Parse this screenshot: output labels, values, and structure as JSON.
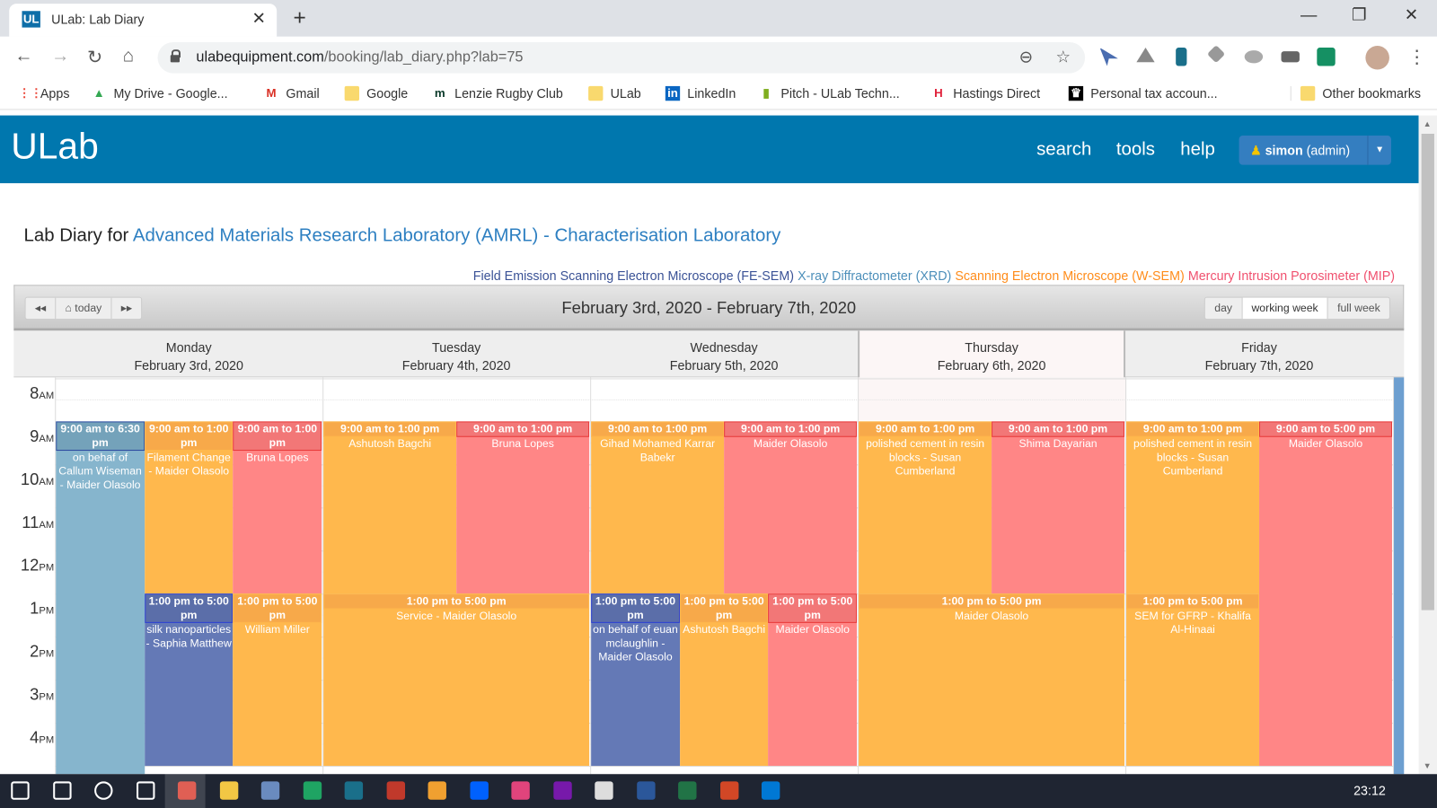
{
  "browser": {
    "tab_title": "ULab: Lab Diary",
    "tab_favicon": "UL",
    "url_host": "ulabequipment.com",
    "url_path": "/booking/lab_diary.php?lab=75",
    "bookmarks": [
      {
        "label": "Apps",
        "icon": "apps-grid-icon"
      },
      {
        "label": "My Drive - Google...",
        "icon": "google-drive-icon"
      },
      {
        "label": "Gmail",
        "icon": "gmail-icon"
      },
      {
        "label": "Google",
        "icon": "folder-icon"
      },
      {
        "label": "Lenzie Rugby Club",
        "icon": "lenzie-icon"
      },
      {
        "label": "ULab",
        "icon": "folder-icon"
      },
      {
        "label": "LinkedIn",
        "icon": "linkedin-icon"
      },
      {
        "label": "Pitch - ULab Techn...",
        "icon": "pitch-icon"
      },
      {
        "label": "Hastings Direct",
        "icon": "hastings-icon"
      },
      {
        "label": "Personal tax accoun...",
        "icon": "crown-icon"
      }
    ],
    "other_bookmarks": "Other bookmarks"
  },
  "header": {
    "logo": "ULab",
    "nav": [
      "search",
      "tools",
      "help"
    ],
    "user_name": "simon",
    "user_role": "(admin)"
  },
  "page": {
    "title_prefix": "Lab Diary for",
    "lab_name": "Advanced Materials Research Laboratory (AMRL) - Characterisation Laboratory"
  },
  "legend": [
    {
      "label": "Field Emission Scanning Electron Microscope (FE-SEM)",
      "color": "#3a5296"
    },
    {
      "label": "X-ray Diffractometer (XRD)",
      "color": "#4d8fba"
    },
    {
      "label": "Scanning Electron Microscope (W-SEM)",
      "color": "#ff8c1a"
    },
    {
      "label": "Mercury Intrusion Porosimeter (MIP)",
      "color": "#f0506e"
    }
  ],
  "calendar": {
    "prev": "◂◂",
    "today": "today",
    "next": "▸▸",
    "range": "February 3rd, 2020 - February 7th, 2020",
    "views": [
      "day",
      "working week",
      "full week"
    ],
    "active_view": "working week",
    "days": [
      {
        "name": "Monday",
        "date": "February 3rd, 2020"
      },
      {
        "name": "Tuesday",
        "date": "February 4th, 2020"
      },
      {
        "name": "Wednesday",
        "date": "February 5th, 2020"
      },
      {
        "name": "Thursday",
        "date": "February 6th, 2020",
        "today": true
      },
      {
        "name": "Friday",
        "date": "February 7th, 2020"
      }
    ],
    "hours": [
      {
        "n": "8",
        "s": "AM"
      },
      {
        "n": "9",
        "s": "AM"
      },
      {
        "n": "10",
        "s": "AM"
      },
      {
        "n": "11",
        "s": "AM"
      },
      {
        "n": "12",
        "s": "PM"
      },
      {
        "n": "1",
        "s": "PM"
      },
      {
        "n": "2",
        "s": "PM"
      },
      {
        "n": "3",
        "s": "PM"
      },
      {
        "n": "4",
        "s": "PM"
      }
    ],
    "instrument_colors": {
      "FE-SEM": {
        "bg": "#6479b6",
        "head": "#5b6ea9",
        "border": "#2b3fd6"
      },
      "XRD": {
        "bg": "#86b5cd",
        "head": "#74a2ba",
        "border": "#2c4aa0"
      },
      "W-SEM": {
        "bg": "#ffb84d",
        "head": "#f7a94a",
        "border": "#ffb84d"
      },
      "MIP": {
        "bg": "#ff8686",
        "head": "#f27777",
        "border": "#e83a3a"
      }
    },
    "events": [
      {
        "day": 0,
        "start": 9,
        "end": 18.5,
        "instrument": "XRD",
        "time": "9:00 am to 6:30 pm",
        "text": "on behaf of Callum Wiseman - Maider Olasolo"
      },
      {
        "day": 0,
        "start": 9,
        "end": 13,
        "instrument": "W-SEM",
        "time": "9:00 am to 1:00 pm",
        "text": "Filament Change - Maider Olasolo"
      },
      {
        "day": 0,
        "start": 9,
        "end": 13,
        "instrument": "MIP",
        "time": "9:00 am to 1:00 pm",
        "text": "Bruna Lopes"
      },
      {
        "day": 0,
        "start": 13,
        "end": 17,
        "instrument": "FE-SEM",
        "time": "1:00 pm to 5:00 pm",
        "text": "silk nanoparticles - Saphia Matthew"
      },
      {
        "day": 0,
        "start": 13,
        "end": 17,
        "instrument": "W-SEM",
        "time": "1:00 pm to 5:00 pm",
        "text": "William Miller"
      },
      {
        "day": 1,
        "start": 9,
        "end": 13,
        "instrument": "W-SEM",
        "time": "9:00 am to 1:00 pm",
        "text": "Ashutosh Bagchi"
      },
      {
        "day": 1,
        "start": 9,
        "end": 13,
        "instrument": "MIP",
        "time": "9:00 am to 1:00 pm",
        "text": "Bruna Lopes"
      },
      {
        "day": 1,
        "start": 13,
        "end": 17,
        "instrument": "W-SEM",
        "time": "1:00 pm to 5:00 pm",
        "text": "Service - Maider Olasolo"
      },
      {
        "day": 2,
        "start": 9,
        "end": 13,
        "instrument": "W-SEM",
        "time": "9:00 am to 1:00 pm",
        "text": "Gihad Mohamed Karrar Babekr"
      },
      {
        "day": 2,
        "start": 9,
        "end": 13,
        "instrument": "MIP",
        "time": "9:00 am to 1:00 pm",
        "text": "Maider Olasolo"
      },
      {
        "day": 2,
        "start": 13,
        "end": 17,
        "instrument": "FE-SEM",
        "time": "1:00 pm to 5:00 pm",
        "text": "on behalf of euan mclaughlin - Maider Olasolo"
      },
      {
        "day": 2,
        "start": 13,
        "end": 17,
        "instrument": "W-SEM",
        "time": "1:00 pm to 5:00 pm",
        "text": "Ashutosh Bagchi"
      },
      {
        "day": 2,
        "start": 13,
        "end": 17,
        "instrument": "MIP",
        "time": "1:00 pm to 5:00 pm",
        "text": "Maider Olasolo"
      },
      {
        "day": 3,
        "start": 9,
        "end": 13,
        "instrument": "W-SEM",
        "time": "9:00 am to 1:00 pm",
        "text": "polished cement in resin blocks - Susan Cumberland"
      },
      {
        "day": 3,
        "start": 9,
        "end": 13,
        "instrument": "MIP",
        "time": "9:00 am to 1:00 pm",
        "text": "Shima Dayarian"
      },
      {
        "day": 3,
        "start": 13,
        "end": 17,
        "instrument": "W-SEM",
        "time": "1:00 pm to 5:00 pm",
        "text": "Maider Olasolo"
      },
      {
        "day": 4,
        "start": 9,
        "end": 13,
        "instrument": "W-SEM",
        "time": "9:00 am to 1:00 pm",
        "text": "polished cement in resin blocks - Susan Cumberland"
      },
      {
        "day": 4,
        "start": 9,
        "end": 17,
        "instrument": "MIP",
        "time": "9:00 am to 5:00 pm",
        "text": "Maider Olasolo"
      },
      {
        "day": 4,
        "start": 13,
        "end": 17,
        "instrument": "W-SEM",
        "time": "1:00 pm to 5:00 pm",
        "text": "SEM for GFRP - Khalifa Al-Hinaai"
      }
    ]
  },
  "taskbar": {
    "time": "23:12"
  }
}
